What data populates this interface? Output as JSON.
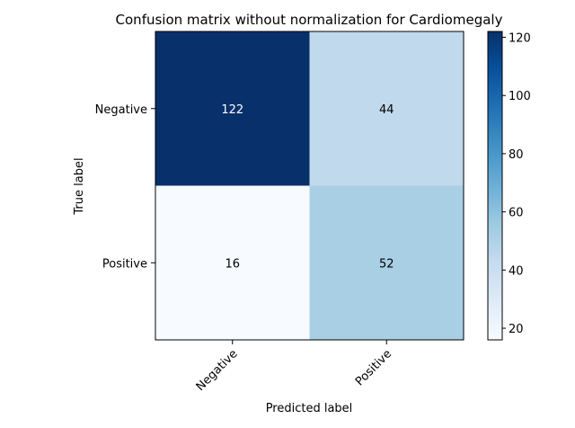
{
  "chart_data": {
    "type": "heatmap",
    "title": "Confusion matrix without normalization for Cardiomegaly",
    "xlabel": "Predicted label",
    "ylabel": "True label",
    "x_categories": [
      "Negative",
      "Positive"
    ],
    "y_categories": [
      "Negative",
      "Positive"
    ],
    "matrix": [
      [
        122,
        44
      ],
      [
        16,
        52
      ]
    ],
    "colormap": "Blues",
    "colorbar": {
      "min": 16,
      "max": 122,
      "ticks": [
        20,
        40,
        60,
        80,
        100,
        120
      ]
    },
    "colors": {
      "low": "#f7fbff",
      "high": "#08306b",
      "cell_122": "#08306b",
      "cell_44": "#c0d9ed",
      "cell_16": "#f7fbff",
      "cell_52": "#a9cfe5"
    },
    "annotation_colors": {
      "on_dark": "#ffffff",
      "on_light": "#000000"
    },
    "grid": false
  }
}
